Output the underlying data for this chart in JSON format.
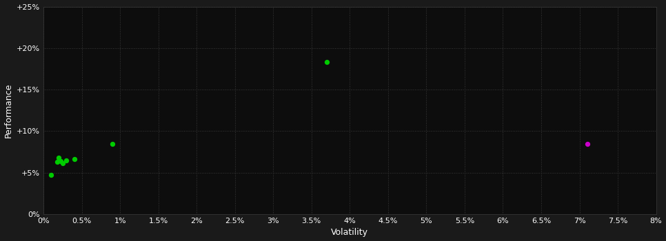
{
  "background_color": "#1a1a1a",
  "plot_bg_color": "#0d0d0d",
  "grid_color": "#3a3a3a",
  "text_color": "#ffffff",
  "xlabel": "Volatility",
  "ylabel": "Performance",
  "xlim": [
    0,
    0.08
  ],
  "ylim": [
    0,
    0.25
  ],
  "xtick_step": 0.005,
  "ytick_step": 0.05,
  "green_points": [
    [
      0.001,
      0.047
    ],
    [
      0.0018,
      0.063
    ],
    [
      0.002,
      0.068
    ],
    [
      0.0022,
      0.064
    ],
    [
      0.0025,
      0.061
    ],
    [
      0.003,
      0.065
    ],
    [
      0.004,
      0.066
    ],
    [
      0.009,
      0.085
    ],
    [
      0.037,
      0.183
    ]
  ],
  "magenta_points": [
    [
      0.071,
      0.085
    ]
  ],
  "green_color": "#00cc00",
  "magenta_color": "#cc00cc",
  "marker_size": 28,
  "font_size_axis_label": 9,
  "font_size_tick": 8
}
